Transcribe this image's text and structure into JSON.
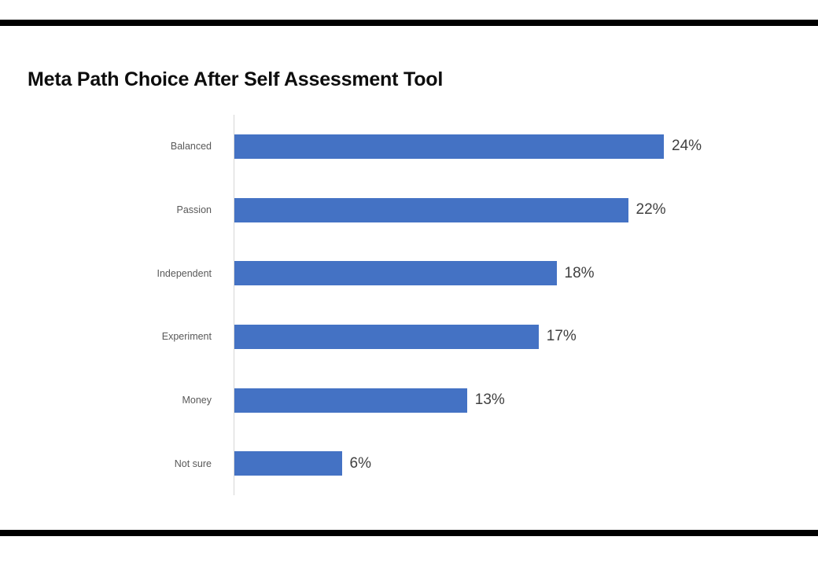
{
  "header": {
    "title": "Meta Path Choice After Self Assessment Tool"
  },
  "decor": {
    "rule_color": "#000000",
    "background": "#ffffff",
    "axis_line_color": "#d6d6d6"
  },
  "chart_data": {
    "type": "bar",
    "orientation": "horizontal",
    "title": "Meta Path Choice After Self Assessment Tool",
    "categories": [
      "Balanced",
      "Passion",
      "Independent",
      "Experiment",
      "Money",
      "Not sure"
    ],
    "values": [
      24,
      22,
      18,
      17,
      13,
      6
    ],
    "value_labels": [
      "24%",
      "22%",
      "18%",
      "17%",
      "13%",
      "6%"
    ],
    "xlabel": "",
    "ylabel": "",
    "xlim": [
      0,
      26
    ],
    "grid": false,
    "legend": false,
    "bar_color": "#4472C4",
    "category_label_color": "#595959",
    "value_label_color": "#404040"
  }
}
